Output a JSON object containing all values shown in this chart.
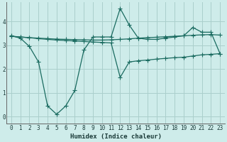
{
  "xlabel": "Humidex (Indice chaleur)",
  "bg_color": "#ceecea",
  "grid_color": "#aacfcc",
  "line_color": "#1a6b60",
  "xlim": [
    -0.5,
    23.5
  ],
  "ylim": [
    -0.3,
    4.8
  ],
  "yticks": [
    0,
    1,
    2,
    3,
    4
  ],
  "xticks": [
    0,
    1,
    2,
    3,
    4,
    5,
    6,
    7,
    8,
    9,
    10,
    11,
    12,
    13,
    14,
    15,
    16,
    17,
    18,
    19,
    20,
    21,
    22,
    23
  ],
  "line1_x": [
    0,
    1,
    2,
    3,
    4,
    5,
    6,
    7,
    8,
    9,
    10,
    11,
    12,
    13,
    14,
    15,
    16,
    17,
    18,
    19,
    20,
    21,
    22,
    23
  ],
  "line1_y": [
    3.4,
    3.3,
    2.95,
    2.3,
    0.45,
    0.1,
    0.45,
    1.1,
    2.8,
    3.35,
    3.35,
    3.35,
    4.55,
    3.85,
    3.3,
    3.25,
    3.25,
    3.3,
    3.35,
    3.4,
    3.75,
    3.55,
    3.55,
    2.65
  ],
  "line2_x": [
    0,
    1,
    2,
    3,
    4,
    5,
    6,
    7,
    8,
    9,
    10,
    11,
    12,
    13,
    14,
    15,
    16,
    17,
    18,
    19,
    20,
    21,
    22,
    23
  ],
  "line2_y": [
    3.38,
    3.35,
    3.32,
    3.3,
    3.28,
    3.26,
    3.25,
    3.24,
    3.23,
    3.22,
    3.22,
    3.23,
    3.25,
    3.27,
    3.3,
    3.32,
    3.34,
    3.36,
    3.38,
    3.4,
    3.42,
    3.44,
    3.45,
    3.43
  ],
  "line3_x": [
    0,
    1,
    2,
    3,
    4,
    5,
    6,
    7,
    8,
    9,
    10,
    11,
    12,
    13,
    14,
    15,
    16,
    17,
    18,
    19,
    20,
    21,
    22,
    23
  ],
  "line3_y": [
    3.38,
    3.35,
    3.32,
    3.28,
    3.25,
    3.22,
    3.2,
    3.18,
    3.16,
    3.14,
    3.12,
    3.1,
    1.65,
    2.3,
    2.35,
    2.38,
    2.42,
    2.45,
    2.48,
    2.5,
    2.55,
    2.6,
    2.62,
    2.65
  ]
}
